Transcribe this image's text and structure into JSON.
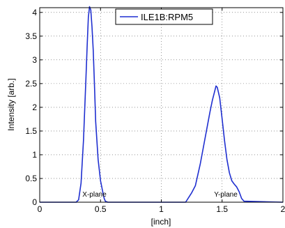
{
  "chart_data": {
    "type": "line",
    "xlabel": "[inch]",
    "ylabel": "Intensity [arb.]",
    "xlim": [
      0,
      2
    ],
    "ylim": [
      0,
      4.1
    ],
    "xticks": [
      0,
      0.5,
      1,
      1.5,
      2
    ],
    "xtick_labels": [
      "0",
      "0.5",
      "1",
      "1.5",
      "2"
    ],
    "yticks": [
      0,
      0.5,
      1,
      1.5,
      2,
      2.5,
      3,
      3.5,
      4
    ],
    "ytick_labels": [
      "0",
      "0.5",
      "1",
      "1.5",
      "2",
      "2.5",
      "3",
      "3.5",
      "4"
    ],
    "grid": true,
    "legend": "top-center",
    "series": [
      {
        "name": "ILE1B:RPM5",
        "color": "#1f2fd0",
        "x": [
          0,
          0.3,
          0.32,
          0.34,
          0.36,
          0.38,
          0.39,
          0.4,
          0.41,
          0.42,
          0.43,
          0.44,
          0.45,
          0.46,
          0.48,
          0.5,
          0.52,
          0.53,
          0.54,
          0.56,
          1.2,
          1.22,
          1.25,
          1.28,
          1.32,
          1.36,
          1.4,
          1.42,
          1.44,
          1.45,
          1.46,
          1.48,
          1.5,
          1.52,
          1.54,
          1.56,
          1.58,
          1.6,
          1.62,
          1.64,
          1.66,
          1.68,
          2.0
        ],
        "y": [
          0,
          0,
          0.05,
          0.4,
          1.3,
          2.6,
          3.3,
          3.9,
          4.12,
          4.05,
          3.7,
          3.2,
          2.5,
          1.7,
          0.9,
          0.45,
          0.2,
          0.08,
          0.02,
          0,
          0,
          0.08,
          0.2,
          0.35,
          0.8,
          1.35,
          1.9,
          2.15,
          2.35,
          2.45,
          2.42,
          2.2,
          1.75,
          1.3,
          0.9,
          0.62,
          0.45,
          0.38,
          0.32,
          0.22,
          0.08,
          0.02,
          0
        ]
      }
    ],
    "annotations": [
      {
        "text": "X-plane",
        "x": 0.45,
        "y": 0.07
      },
      {
        "text": "Y-plane",
        "x": 1.53,
        "y": 0.07
      }
    ]
  }
}
